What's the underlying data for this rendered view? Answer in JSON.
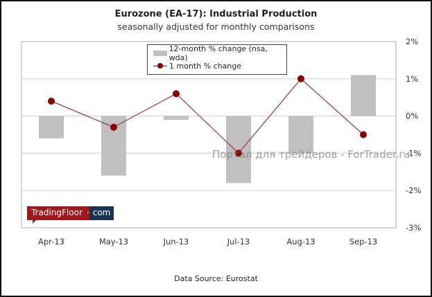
{
  "chart_data": {
    "type": "bar",
    "title": "Eurozone (EA-17): Industrial Production",
    "subtitle": "seasonally adjusted for monthly comparisons",
    "categories": [
      "Apr-13",
      "May-13",
      "Jun-13",
      "Jul-13",
      "Aug-13",
      "Sep-13"
    ],
    "series": [
      {
        "name": "12-month % change (nsa, wda)",
        "kind": "bar",
        "color": "#c0c0c0",
        "values": [
          -0.6,
          -1.6,
          -0.1,
          -1.8,
          -1.0,
          1.1
        ]
      },
      {
        "name": "1 month % change",
        "kind": "line",
        "color": "#8b0000",
        "values": [
          0.4,
          -0.3,
          0.6,
          -1.0,
          1.0,
          -0.5
        ]
      }
    ],
    "ylim": [
      -3,
      2
    ],
    "yticks": [
      2,
      1,
      0,
      -1,
      -2,
      -3
    ],
    "ytick_labels": [
      "2%",
      "1%",
      "0%",
      "-1%",
      "-2%",
      "-3%"
    ],
    "yaxis_side": "right",
    "grid": true,
    "legend_position": "top-center",
    "xlabel": "",
    "ylabel": ""
  },
  "source": "Data Source: Eurostat",
  "logo": {
    "part1": "TradingFloor",
    "dot": "·",
    "part2": "com"
  },
  "watermark": "Портал для трейдеров - ForTrader.ru"
}
